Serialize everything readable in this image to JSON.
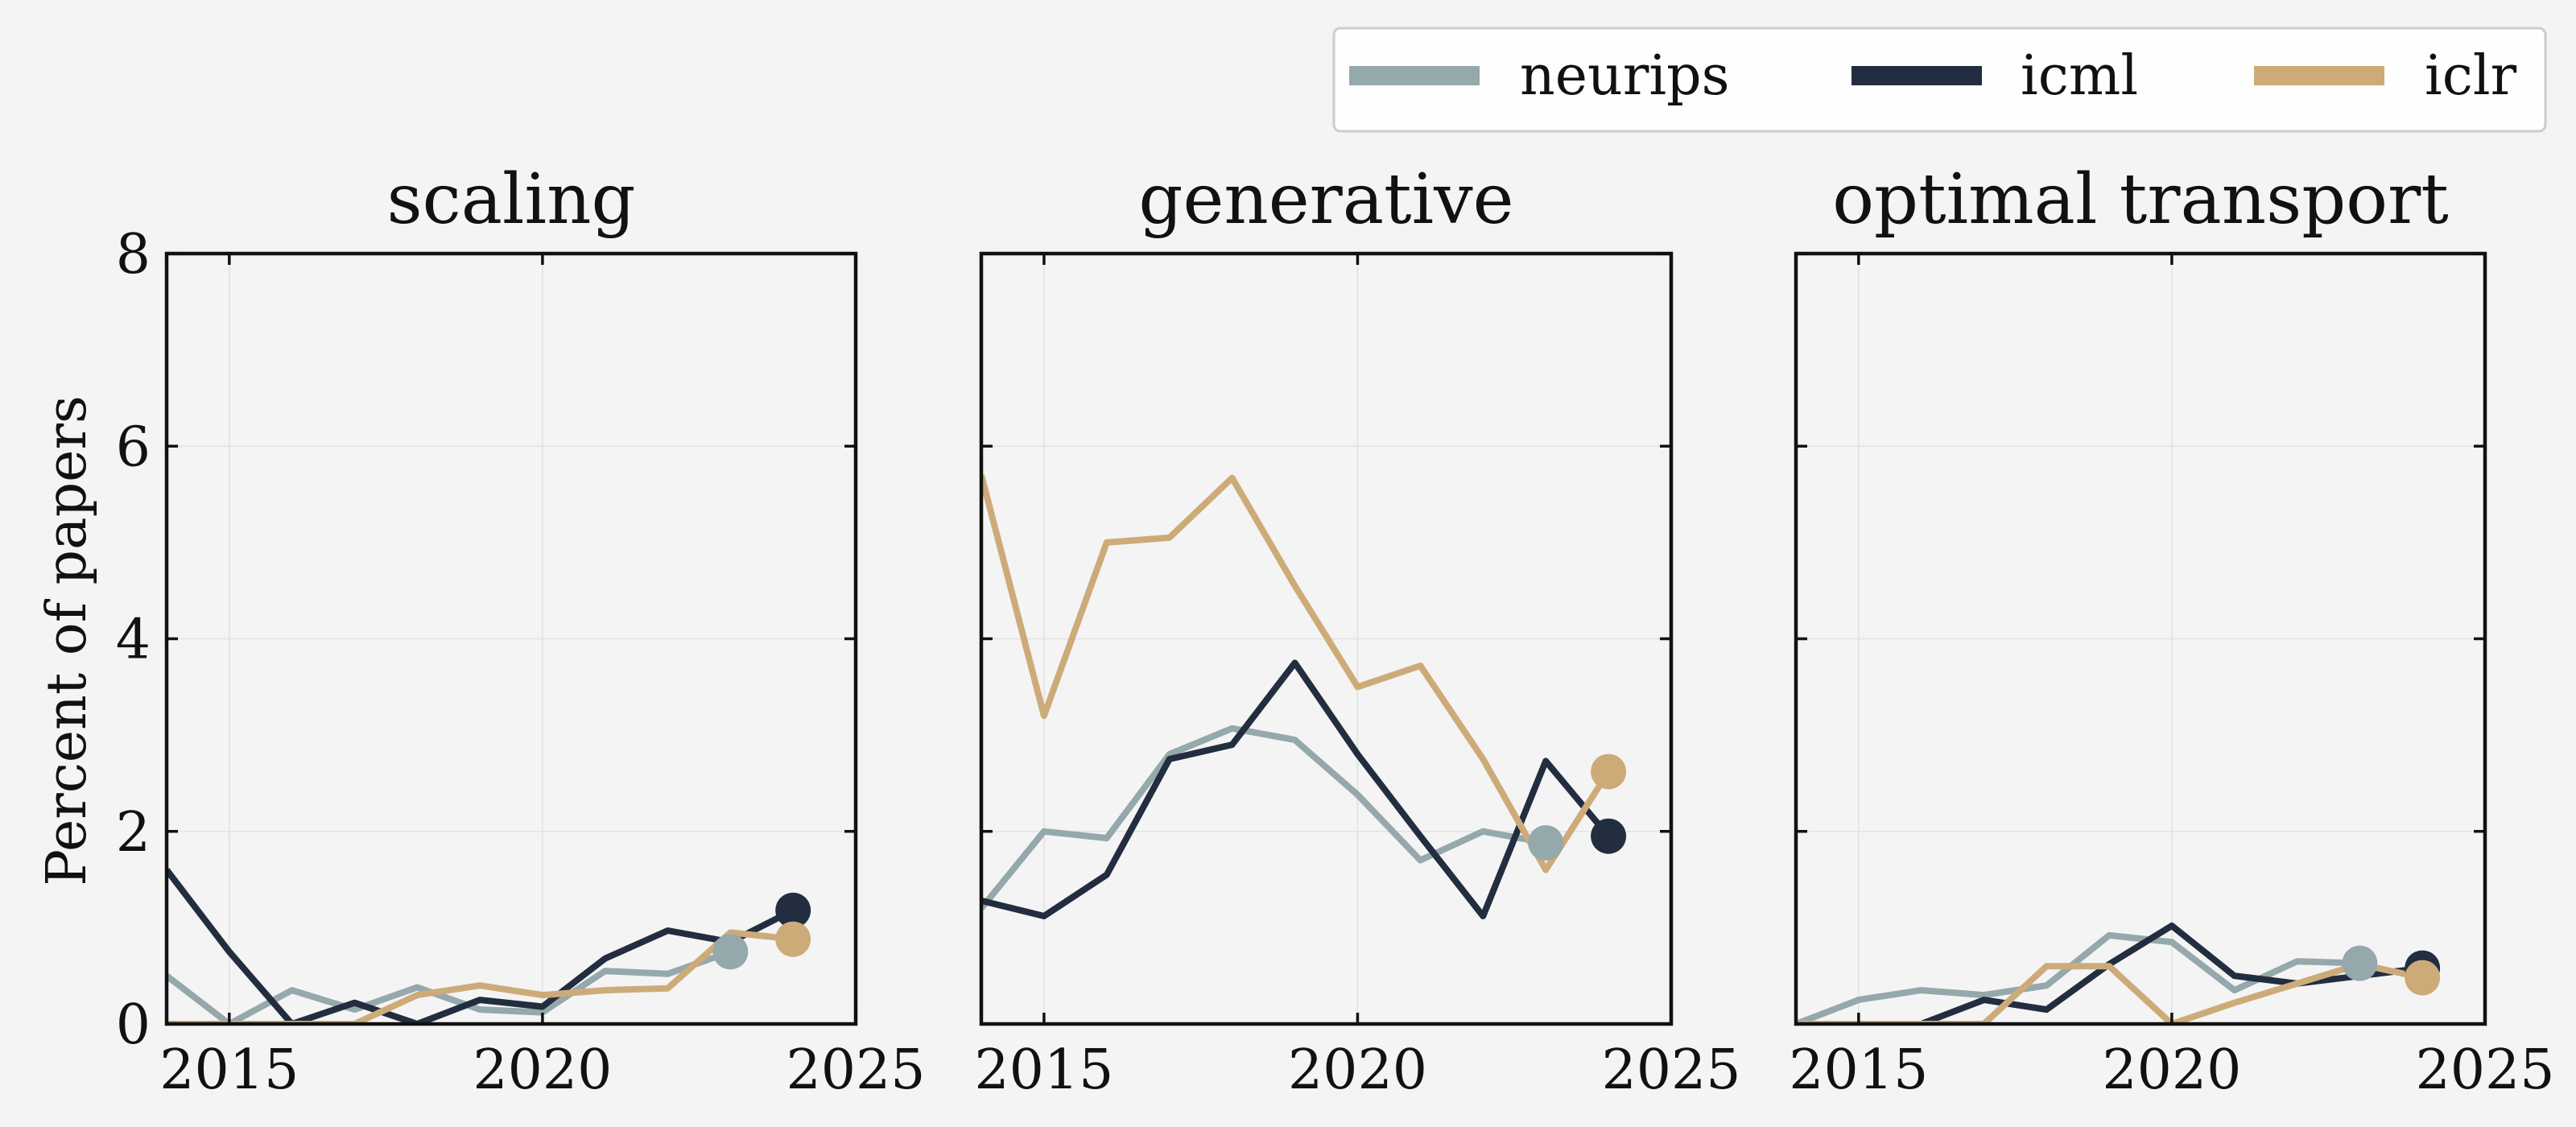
{
  "colors": {
    "neurips": "#95a8ac",
    "icml": "#222d40",
    "iclr": "#cdab79",
    "background": "#f4f4f4"
  },
  "legend": {
    "placement": "top-right",
    "items": [
      {
        "name": "neurips",
        "color": "#95a8ac"
      },
      {
        "name": "icml",
        "color": "#222d40"
      },
      {
        "name": "iclr",
        "color": "#cdab79"
      }
    ]
  },
  "shared": {
    "ylabel": "Percent of papers",
    "xlim": [
      2014,
      2025
    ],
    "ylim": [
      0,
      8
    ],
    "xticks": [
      2015,
      2020,
      2025
    ],
    "yticks": [
      0,
      2,
      4,
      6,
      8
    ],
    "grid": true
  },
  "chart_data": [
    {
      "type": "line",
      "title": "scaling",
      "xlabel": "",
      "ylabel": "Percent of papers",
      "xlim": [
        2014,
        2025
      ],
      "ylim": [
        0,
        8
      ],
      "series": [
        {
          "name": "neurips",
          "x": [
            2014,
            2015,
            2016,
            2017,
            2018,
            2019,
            2020,
            2021,
            2022,
            2023
          ],
          "values": [
            0.5,
            0.0,
            0.35,
            0.15,
            0.38,
            0.15,
            0.12,
            0.55,
            0.52,
            0.75
          ]
        },
        {
          "name": "icml",
          "x": [
            2014,
            2015,
            2016,
            2017,
            2018,
            2019,
            2020,
            2021,
            2022,
            2023,
            2024
          ],
          "values": [
            1.6,
            0.75,
            0.0,
            0.22,
            0.0,
            0.25,
            0.18,
            0.68,
            0.97,
            0.85,
            1.18
          ]
        },
        {
          "name": "iclr",
          "x": [
            2014,
            2015,
            2016,
            2017,
            2018,
            2019,
            2020,
            2021,
            2022,
            2023,
            2024
          ],
          "values": [
            0.0,
            0.0,
            0.0,
            0.0,
            0.3,
            0.4,
            0.3,
            0.35,
            0.37,
            0.95,
            0.88
          ]
        }
      ]
    },
    {
      "type": "line",
      "title": "generative",
      "xlabel": "",
      "ylabel": "",
      "xlim": [
        2014,
        2025
      ],
      "ylim": [
        0,
        8
      ],
      "series": [
        {
          "name": "neurips",
          "x": [
            2014,
            2015,
            2016,
            2017,
            2018,
            2019,
            2020,
            2021,
            2022,
            2023
          ],
          "values": [
            1.2,
            2.0,
            1.93,
            2.8,
            3.07,
            2.95,
            2.38,
            1.7,
            2.0,
            1.88
          ]
        },
        {
          "name": "icml",
          "x": [
            2014,
            2015,
            2016,
            2017,
            2018,
            2019,
            2020,
            2021,
            2022,
            2023,
            2024
          ],
          "values": [
            1.28,
            1.12,
            1.55,
            2.75,
            2.9,
            3.75,
            2.8,
            1.95,
            1.12,
            2.73,
            1.95
          ]
        },
        {
          "name": "iclr",
          "x": [
            2014,
            2015,
            2016,
            2017,
            2018,
            2019,
            2020,
            2021,
            2022,
            2023,
            2024
          ],
          "values": [
            5.7,
            3.2,
            5.0,
            5.05,
            5.67,
            4.55,
            3.5,
            3.72,
            2.75,
            1.6,
            2.62
          ]
        }
      ]
    },
    {
      "type": "line",
      "title": "optimal transport",
      "xlabel": "",
      "ylabel": "",
      "xlim": [
        2014,
        2025
      ],
      "ylim": [
        0,
        8
      ],
      "series": [
        {
          "name": "neurips",
          "x": [
            2014,
            2015,
            2016,
            2017,
            2018,
            2019,
            2020,
            2021,
            2022,
            2023
          ],
          "values": [
            0.0,
            0.25,
            0.35,
            0.3,
            0.4,
            0.92,
            0.85,
            0.35,
            0.65,
            0.63
          ]
        },
        {
          "name": "icml",
          "x": [
            2014,
            2015,
            2016,
            2017,
            2018,
            2019,
            2020,
            2021,
            2022,
            2023,
            2024
          ],
          "values": [
            0.0,
            0.0,
            0.0,
            0.25,
            0.15,
            0.62,
            1.02,
            0.5,
            0.42,
            0.5,
            0.58
          ]
        },
        {
          "name": "iclr",
          "x": [
            2014,
            2015,
            2016,
            2017,
            2018,
            2019,
            2020,
            2021,
            2022,
            2023,
            2024
          ],
          "values": [
            0.0,
            0.0,
            0.0,
            0.0,
            0.6,
            0.6,
            0.0,
            0.22,
            0.42,
            0.62,
            0.48
          ]
        }
      ]
    }
  ]
}
